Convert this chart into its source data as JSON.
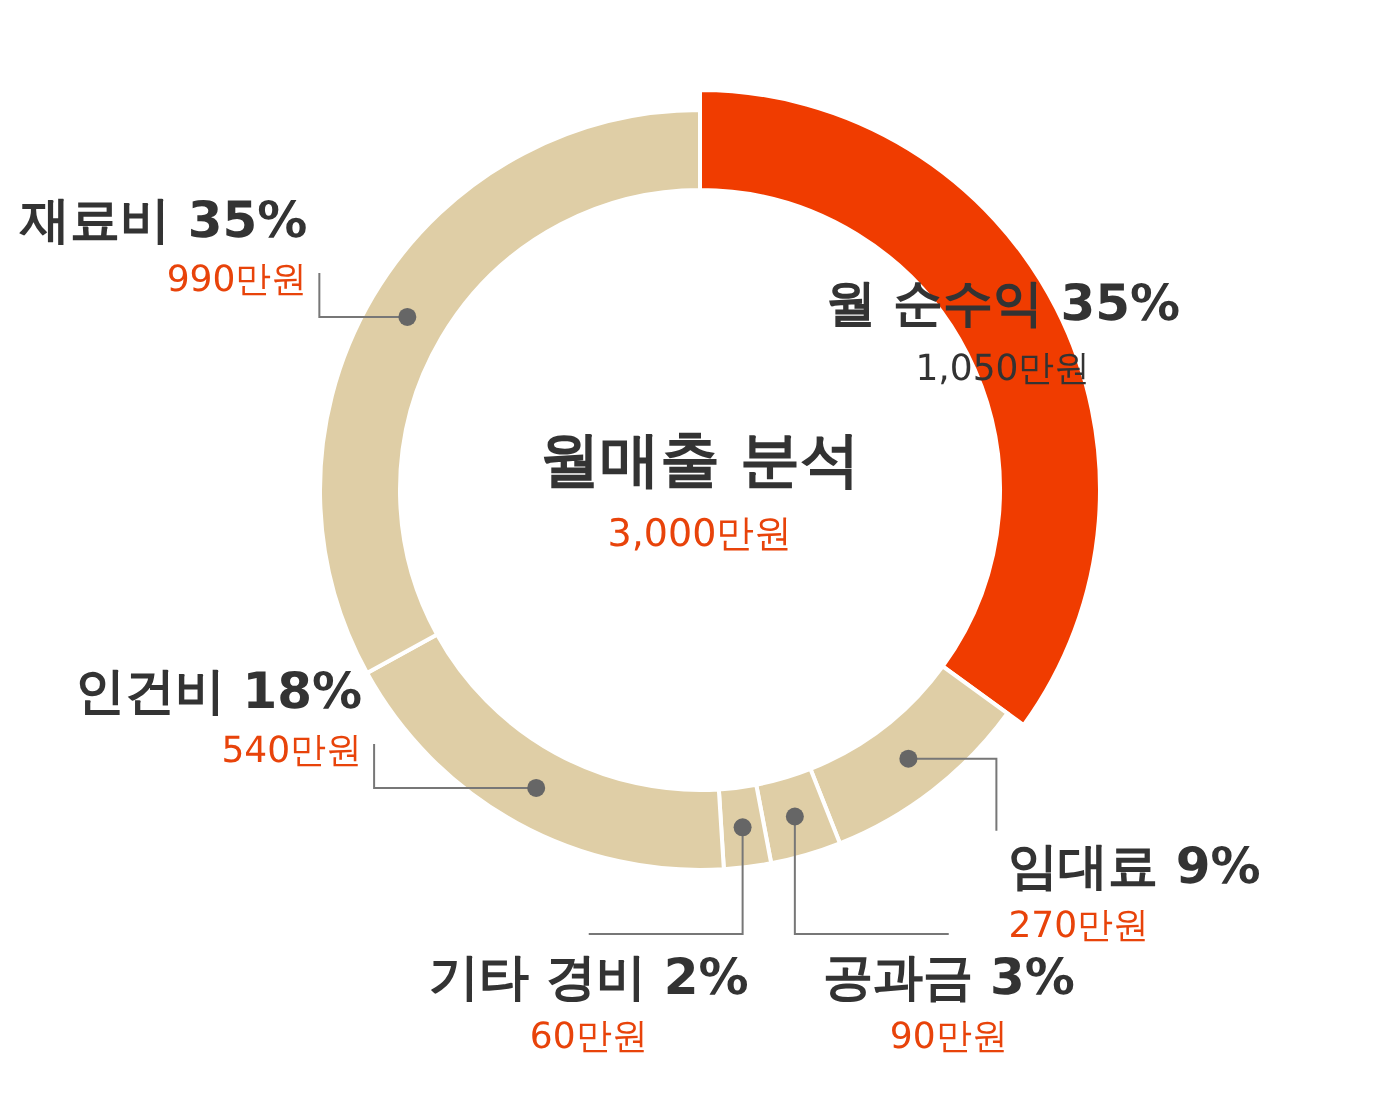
{
  "chart_data": {
    "type": "donut",
    "title": "월매출 분석",
    "subtitle": "3,000만원",
    "categories": [
      "월 순수익 35%",
      "임대료 9%",
      "공과금 3%",
      "기타 경비 2%",
      "인건비 18%",
      "재료비 35%"
    ],
    "values": [
      1050,
      270,
      90,
      60,
      540,
      990
    ],
    "colors": [
      "#f03c00",
      "#dfcea6",
      "#dfcea6",
      "#dfcea6",
      "#dfcea6",
      "#dfcea6"
    ],
    "value_labels": [
      "1,050만원",
      "270만원",
      "90만원",
      "60만원",
      "540만원",
      "990만원"
    ]
  }
}
